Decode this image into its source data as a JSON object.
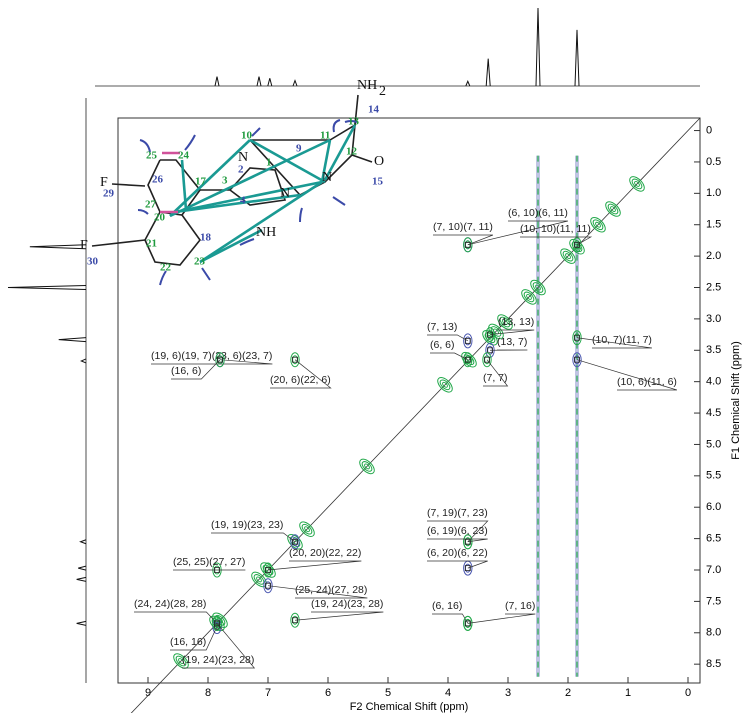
{
  "chart_data": {
    "type": "nmr2d",
    "x_label": "F2 Chemical Shift (ppm)",
    "y_label": "F1 Chemical Shift (ppm)",
    "xlim": [
      9.5,
      -0.2
    ],
    "ylim": [
      -0.2,
      8.8
    ],
    "xticks": [
      9,
      8,
      7,
      6,
      5,
      4,
      3,
      2,
      1,
      0
    ],
    "yticks": [
      0,
      0.5,
      {
        "value": 1,
        "label": "1.0"
      },
      1.5,
      {
        "value": 2,
        "label": "2.0"
      },
      2.5,
      {
        "value": 3,
        "label": "3.0"
      },
      3.5,
      {
        "value": 4,
        "label": "4.0"
      },
      4.5,
      {
        "value": 5,
        "label": "5.0"
      },
      5.5,
      {
        "value": 6,
        "label": "6.0"
      },
      6.5,
      {
        "value": 7,
        "label": "7.0"
      },
      7.5,
      {
        "value": 8,
        "label": "8.0"
      },
      8.5
    ],
    "positive_color": "#22a84a",
    "negative_color": "#4a57b0",
    "diagonal_peaks": [
      0.85,
      1.25,
      1.5,
      1.85,
      2.0,
      2.5,
      2.65,
      3.05,
      3.2,
      3.3,
      3.65,
      4.05,
      5.35,
      6.35,
      6.55,
      7.0,
      7.15,
      7.8,
      7.85,
      8.45
    ],
    "t1_streaks": [
      2.5,
      1.85
    ],
    "projection_peaks": [
      {
        "ppm": 7.85,
        "height": 0.12
      },
      {
        "ppm": 7.15,
        "height": 0.12
      },
      {
        "ppm": 6.97,
        "height": 0.1
      },
      {
        "ppm": 6.55,
        "height": 0.07
      },
      {
        "ppm": 3.67,
        "height": 0.06
      },
      {
        "ppm": 3.33,
        "height": 0.35
      },
      {
        "ppm": 2.5,
        "height": 1.0
      },
      {
        "ppm": 1.85,
        "height": 0.72
      }
    ],
    "cross_peaks": [
      {
        "label": "(7, 10)(7, 11)",
        "x": 3.67,
        "y": 1.82
      },
      {
        "label": "(6, 10)(6, 11)",
        "x": 3.67,
        "y": 1.82
      },
      {
        "label": "(10, 10)(11, 11)",
        "x": 1.85,
        "y": 1.82
      },
      {
        "label": "(19, 6)(19, 7)(23, 6)(23, 7)",
        "x": 7.8,
        "y": 3.65
      },
      {
        "label": "(16, 6)",
        "x": 7.8,
        "y": 3.65
      },
      {
        "label": "(20, 6)(22, 6)",
        "x": 6.55,
        "y": 3.65
      },
      {
        "label": "(7, 13)",
        "x": 3.67,
        "y": 3.35
      },
      {
        "label": "(13, 13)",
        "x": 3.3,
        "y": 3.25
      },
      {
        "label": "(6, 6)",
        "x": 3.67,
        "y": 3.65
      },
      {
        "label": "(13, 7)",
        "x": 3.3,
        "y": 3.5
      },
      {
        "label": "(7, 7)",
        "x": 3.35,
        "y": 3.65
      },
      {
        "label": "(10, 7)(11, 7)",
        "x": 1.85,
        "y": 3.3
      },
      {
        "label": "(10, 6)(11, 6)",
        "x": 1.85,
        "y": 3.65
      },
      {
        "label": "(7, 19)(7, 23)",
        "x": 3.67,
        "y": 6.55
      },
      {
        "label": "(6, 19)(6, 23)",
        "x": 3.67,
        "y": 6.55
      },
      {
        "label": "(6, 20)(6, 22)",
        "x": 3.67,
        "y": 6.97
      },
      {
        "label": "(6, 16)",
        "x": 3.67,
        "y": 7.85
      },
      {
        "label": "(7, 16)",
        "x": 3.67,
        "y": 7.85
      },
      {
        "label": "(19, 19)(23, 23)",
        "x": 6.55,
        "y": 6.55
      },
      {
        "label": "(25, 25)(27, 27)",
        "x": 7.85,
        "y": 7.0
      },
      {
        "label": "(20, 20)(22, 22)",
        "x": 7.0,
        "y": 7.0
      },
      {
        "label": "(25, 24)(27, 28)",
        "x": 7.0,
        "y": 7.25
      },
      {
        "label": "(24, 24)(28, 28)",
        "x": 7.85,
        "y": 7.85
      },
      {
        "label": "(19, 24)(23, 28)",
        "x": 6.55,
        "y": 7.8
      },
      {
        "label": "(16, 16)",
        "x": 7.85,
        "y": 7.9
      },
      {
        "label": "(19, 24)(23, 28)",
        "x": 7.85,
        "y": 7.85
      }
    ]
  },
  "molecule": {
    "atoms": [
      "NH",
      "2",
      "N",
      "N",
      "N",
      "O",
      "F",
      "F",
      "NH"
    ],
    "green_numbers": [
      "10",
      "11",
      "13",
      "24",
      "25",
      "27",
      "20",
      "22",
      "23",
      "17",
      "3",
      "1",
      "12",
      "21"
    ],
    "blue_numbers": [
      "14",
      "15",
      "29",
      "30",
      "26",
      "2",
      "9",
      "4",
      "18"
    ],
    "green_color": "#1f9a3e",
    "blue_color": "#3b4aa8"
  }
}
